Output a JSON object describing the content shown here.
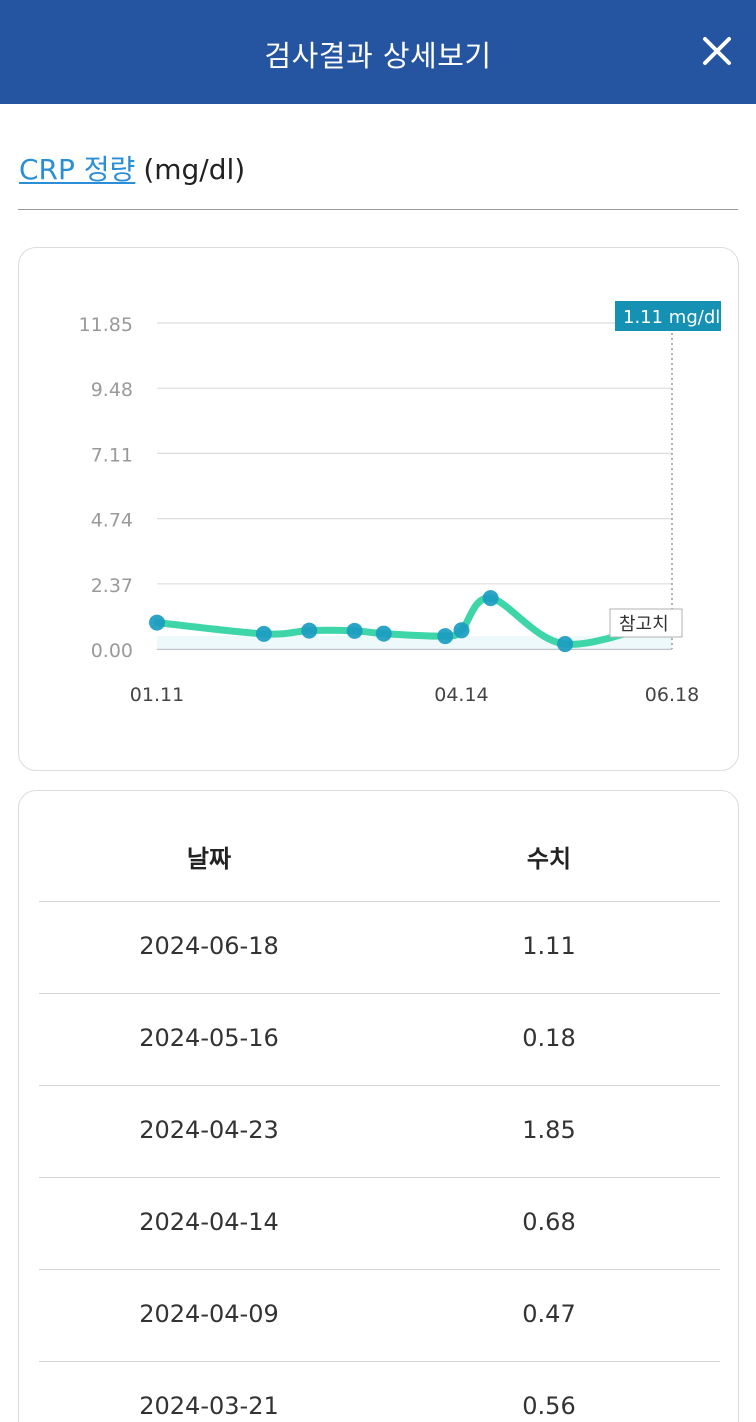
{
  "header": {
    "title": "검사결과 상세보기",
    "close_icon": "close-icon"
  },
  "test": {
    "name": "CRP 정량",
    "unit": "(mg/dl)"
  },
  "chart_data": {
    "type": "line",
    "y_ticks": [
      "11.85",
      "9.48",
      "7.11",
      "4.74",
      "2.37",
      "0.00"
    ],
    "ylim": [
      0,
      11.85
    ],
    "x_tick_labels": [
      "01.11",
      "04.14",
      "06.18"
    ],
    "series": [
      {
        "x": [
          "2024-01-11",
          "2024-02-13",
          "2024-02-27",
          "2024-03-12",
          "2024-03-21",
          "2024-04-09",
          "2024-04-14",
          "2024-04-23",
          "2024-05-16",
          "2024-06-18"
        ],
        "values": [
          0.96,
          0.55,
          0.67,
          0.66,
          0.56,
          0.47,
          0.68,
          1.85,
          0.18,
          1.11
        ]
      }
    ],
    "line_color": "#3ed6a8",
    "point_color": "#1a9cc0",
    "tooltip": "1.11 mg/dl",
    "reference_label": "참고치",
    "grid": true
  },
  "table": {
    "headers": {
      "date": "날짜",
      "value": "수치"
    },
    "rows": [
      {
        "date": "2024-06-18",
        "value": "1.11"
      },
      {
        "date": "2024-05-16",
        "value": "0.18"
      },
      {
        "date": "2024-04-23",
        "value": "1.85"
      },
      {
        "date": "2024-04-14",
        "value": "0.68"
      },
      {
        "date": "2024-04-09",
        "value": "0.47"
      },
      {
        "date": "2024-03-21",
        "value": "0.56"
      }
    ]
  }
}
